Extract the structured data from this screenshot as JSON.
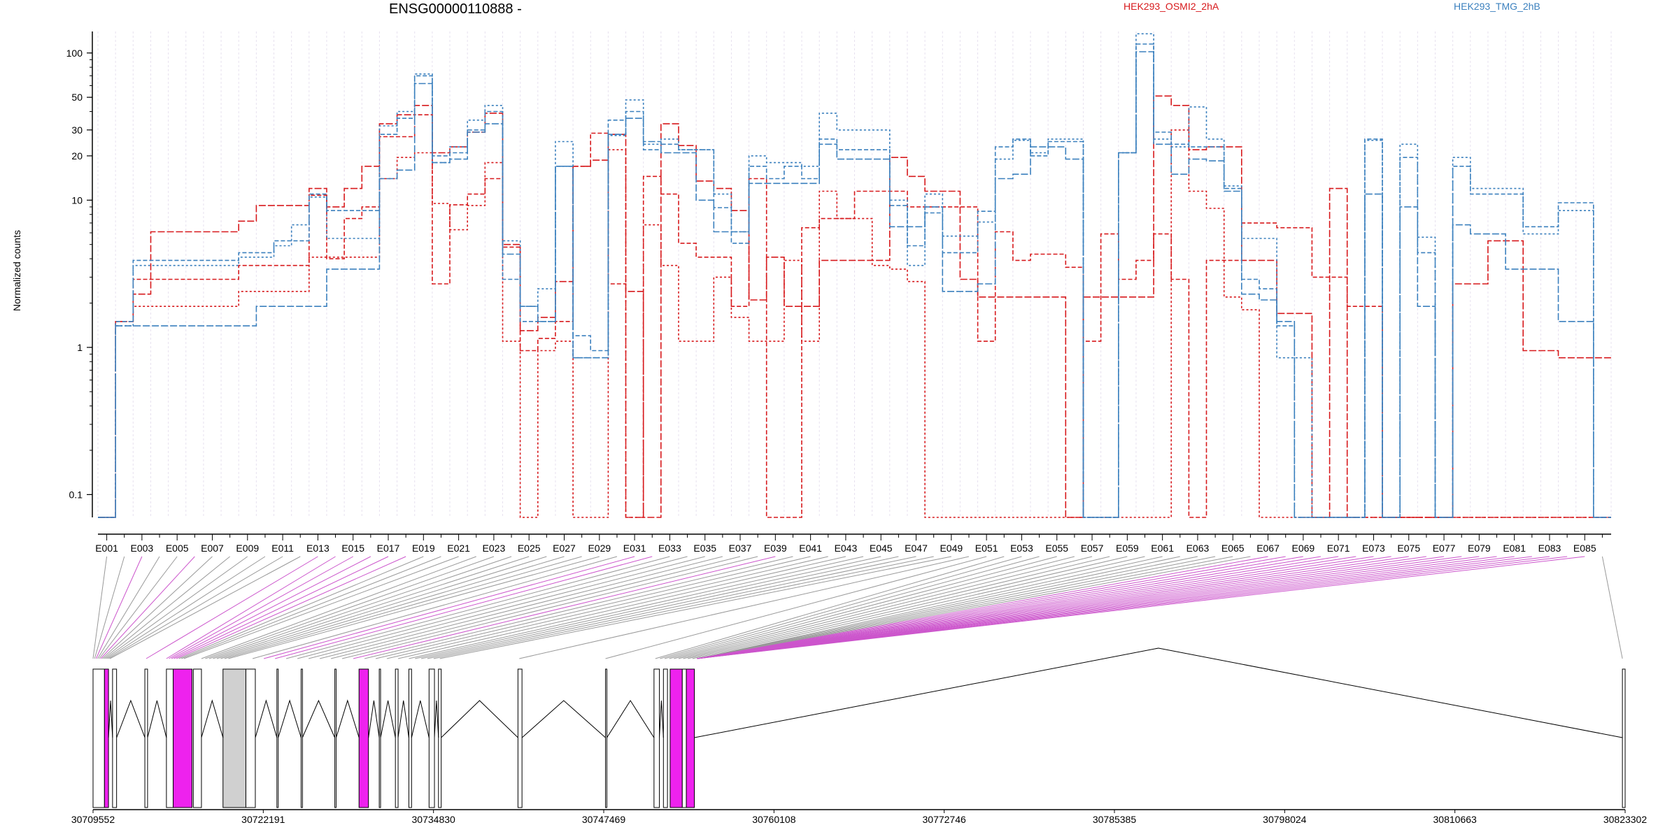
{
  "chart_data": {
    "type": "line",
    "title": "ENSG00000110888 -",
    "ylabel": "Normalized counts",
    "yscale": "log",
    "ylim": [
      0.07,
      140
    ],
    "yticks": [
      0.1,
      1,
      10,
      20,
      30,
      50,
      100
    ],
    "ytick_labels": [
      "0.1",
      "1",
      "10",
      "20",
      "30",
      "50",
      "100"
    ],
    "grid": "vertical dotted lines per exon",
    "legend": [
      {
        "label": "HEK293_OSMI2_2hA",
        "color": "#d7191c"
      },
      {
        "label": "HEK293_TMG_2hB",
        "color": "#3b80be"
      }
    ],
    "exon_labels": [
      "E001",
      "E003",
      "E005",
      "E007",
      "E009",
      "E011",
      "E013",
      "E015",
      "E017",
      "E019",
      "E021",
      "E023",
      "E025",
      "E027",
      "E029",
      "E031",
      "E033",
      "E035",
      "E037",
      "E039",
      "E041",
      "E043",
      "E045",
      "E047",
      "E049",
      "E051",
      "E053",
      "E055",
      "E057",
      "E059",
      "E061",
      "E063",
      "E065",
      "E067",
      "E069",
      "E071",
      "E073",
      "E075",
      "E077",
      "E079",
      "E081",
      "E083",
      "E085"
    ],
    "n_exons": 86,
    "series": [
      {
        "name": "HEK293_OSMI2_2hA",
        "color": "#d7191c",
        "values": [
          0.07,
          1.5,
          2.3,
          6.1,
          6.1,
          6.1,
          6.1,
          6.1,
          7.2,
          9.2,
          9.2,
          9.2,
          12,
          9,
          12,
          17,
          33,
          38,
          44,
          21,
          23,
          29,
          39,
          5,
          1.3,
          1.6,
          2.8,
          17,
          18.7,
          28,
          2.4,
          0.07,
          33,
          23.5,
          13.5,
          12,
          8.5,
          2.1,
          4.1,
          1.9,
          1.9,
          3.9,
          3.9,
          3.9,
          3.9,
          19.5,
          14.5,
          11.5,
          11.5,
          2.9,
          2.2,
          2.2,
          2.2,
          2.2,
          2.2,
          0.07,
          2.2,
          2.2,
          2.2,
          2.2,
          51,
          44,
          22,
          23,
          23,
          3.9,
          3.9,
          1.7,
          1.7,
          0.07,
          12,
          0.07,
          0.07,
          0.07,
          0.07,
          0.07,
          0.07,
          2.7,
          2.7,
          5.3,
          5.3,
          0.95,
          0.95,
          0.85,
          0.85,
          0.85
        ]
      },
      {
        "name": "HEK293_OSMI2_2hA",
        "color": "#d7191c",
        "values": [
          0.07,
          1.5,
          2.9,
          2.9,
          2.9,
          2.9,
          2.9,
          2.9,
          3.6,
          3.6,
          3.6,
          3.6,
          10.8,
          4,
          7.5,
          9,
          27,
          27,
          38,
          2.7,
          9.3,
          11,
          14,
          4.8,
          0.95,
          1.15,
          1.5,
          17,
          28.5,
          2.7,
          0.07,
          14.5,
          11,
          5.1,
          4.1,
          4.1,
          1.9,
          14,
          0.07,
          0.07,
          6.5,
          7.5,
          7.5,
          11.5,
          11.5,
          11.5,
          9,
          9,
          9,
          9,
          1.1,
          6.1,
          3.9,
          4.3,
          4.3,
          3.5,
          1.1,
          5.9,
          2.9,
          3.9,
          5.9,
          2.9,
          0.07,
          3.9,
          3.9,
          7,
          7,
          6.5,
          6.5,
          3,
          3,
          1.9,
          1.9,
          0.07,
          0.07,
          0.07,
          0.07,
          0.07,
          0.07,
          0.07,
          0.07,
          0.07,
          0.07,
          0.07,
          0.07,
          0.07
        ]
      },
      {
        "name": "HEK293_OSMI2_2hA",
        "color": "#d7191c",
        "values": [
          0.07,
          1.5,
          1.9,
          1.9,
          1.9,
          1.9,
          1.9,
          1.9,
          2.4,
          2.4,
          2.4,
          2.4,
          4.1,
          4.1,
          4.1,
          4.1,
          14,
          19.5,
          21,
          9.5,
          6.3,
          9.2,
          18,
          1.1,
          0.07,
          0.95,
          1.1,
          0.07,
          0.07,
          22,
          0.07,
          6.8,
          3.6,
          1.1,
          1.1,
          3,
          1.6,
          1.1,
          1.1,
          3.9,
          1.1,
          11.5,
          7.5,
          7.5,
          3.6,
          3.4,
          2.8,
          0.07,
          0.07,
          0.07,
          0.07,
          0.07,
          0.07,
          0.07,
          0.07,
          0.07,
          0.07,
          0.07,
          0.07,
          0.07,
          0.07,
          30,
          11.5,
          8.8,
          2.2,
          1.8,
          0.07,
          0.07,
          0.07,
          0.07,
          0.07,
          0.07,
          0.07,
          0.07,
          0.07,
          0.07,
          0.07,
          0.07,
          0.07,
          0.07,
          0.07,
          0.07,
          0.07,
          0.07,
          0.07,
          0.07
        ]
      },
      {
        "name": "HEK293_TMG_2hB",
        "color": "#3b80be",
        "values": [
          0.07,
          1.4,
          1.4,
          1.4,
          1.4,
          1.4,
          1.4,
          1.4,
          1.4,
          1.9,
          1.9,
          1.9,
          1.9,
          3.4,
          3.4,
          3.4,
          14,
          16,
          62,
          18,
          19,
          29,
          33,
          4.3,
          1.9,
          1.5,
          17,
          0.85,
          0.85,
          28,
          36,
          25,
          21,
          21,
          10,
          6.1,
          6.1,
          13,
          13,
          13,
          13,
          24,
          19,
          19,
          19,
          6.6,
          6.6,
          9,
          2.4,
          2.4,
          2.7,
          14,
          15,
          23,
          23,
          19,
          0.07,
          0.07,
          21,
          102,
          24,
          15,
          19,
          18.5,
          11.5,
          2.3,
          2.1,
          1.5,
          0.07,
          0.07,
          0.07,
          0.07,
          11,
          0.07,
          9,
          1.9,
          0.07,
          6.8,
          5.9,
          5.9,
          3.4,
          3.4,
          3.4,
          1.5,
          1.5,
          0.07
        ]
      },
      {
        "name": "HEK293_TMG_2hB",
        "color": "#3b80be",
        "values": [
          0.07,
          1.5,
          3.9,
          3.9,
          3.9,
          3.9,
          3.9,
          3.9,
          4.4,
          4.4,
          5.3,
          5.3,
          11,
          8.5,
          8.5,
          8.5,
          28,
          36,
          70,
          20,
          21,
          30,
          40,
          2.9,
          1.5,
          1.5,
          17,
          1.2,
          0.95,
          35,
          40,
          22,
          24,
          22,
          22,
          8.9,
          5.1,
          17,
          14,
          17,
          14,
          26,
          22,
          22,
          22,
          9.2,
          4.9,
          8.2,
          4.4,
          4.4,
          8.4,
          23,
          26,
          20,
          25,
          25,
          0.07,
          0.07,
          21,
          115,
          29,
          24,
          23,
          23,
          12,
          2.9,
          2.5,
          1.4,
          0.07,
          0.07,
          0.07,
          0.07,
          26,
          0.07,
          19.5,
          4.4,
          0.07,
          17,
          11,
          11,
          11,
          6.6,
          6.6,
          9.6,
          9.6,
          0.07
        ]
      },
      {
        "name": "HEK293_TMG_2hB",
        "color": "#3b80be",
        "values": [
          0.07,
          1.4,
          3.6,
          3.6,
          3.6,
          3.6,
          3.6,
          3.6,
          4.1,
          4.1,
          4.9,
          6.8,
          10.5,
          5.5,
          5.5,
          5.5,
          32,
          40,
          72,
          18,
          23,
          35,
          44,
          5.3,
          1.9,
          2.5,
          25,
          0.85,
          0.85,
          27.5,
          48,
          24,
          26,
          22,
          22,
          11,
          6.1,
          20,
          18,
          18,
          17,
          39,
          30,
          30,
          30,
          10,
          3.6,
          11,
          5.7,
          5.7,
          7.1,
          19,
          25.5,
          21,
          26,
          26,
          0.07,
          0.07,
          21,
          135,
          26,
          23,
          43,
          26,
          12.5,
          5.5,
          5.5,
          0.85,
          0.85,
          0.07,
          0.07,
          0.07,
          25.5,
          0.07,
          24,
          5.6,
          0.07,
          19.5,
          12,
          12,
          12,
          5.9,
          5.9,
          8.5,
          8.5,
          0.07
        ]
      }
    ],
    "bottom_panel": {
      "type": "gene_model",
      "genomic_ticks": [
        30709552,
        30722191,
        30734830,
        30747469,
        30760108,
        30772746,
        30785385,
        30798024,
        30810663,
        30823302
      ],
      "tick_labels": [
        "30709552",
        "30722191",
        "30734830",
        "30747469",
        "30760108",
        "30772746",
        "30785385",
        "30798024",
        "30810663",
        "30823302"
      ]
    }
  },
  "colors": {
    "osmi": "#d7191c",
    "tmg": "#3b80be",
    "highlight": "#ee22ee",
    "exon_grey": "#d0d0d0",
    "grid": "#e7e1ef"
  }
}
